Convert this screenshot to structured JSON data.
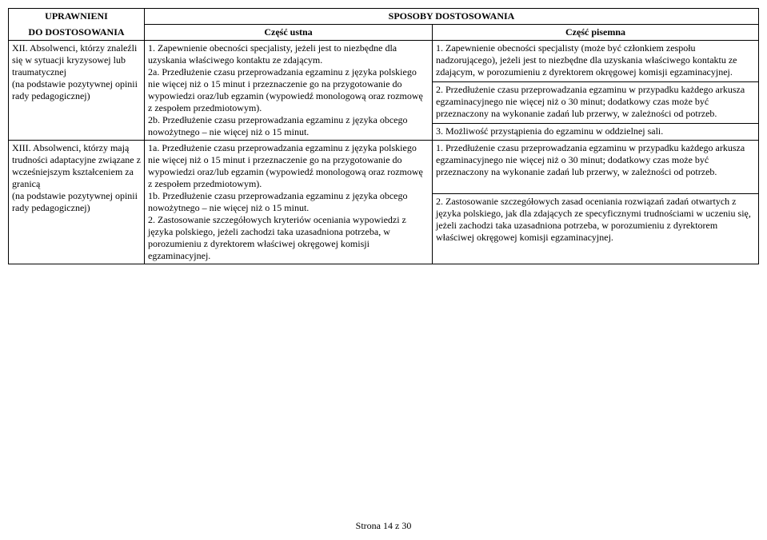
{
  "header": {
    "leftTop": "UPRAWNIENI",
    "leftBottom": "DO DOSTOSOWANIA",
    "mainTop": "SPOSOBY DOSTOSOWANIA",
    "midSub": "Część ustna",
    "rightSub": "Część pisemna"
  },
  "rowA": {
    "left": "XII. Absolwenci, którzy znaleźli się w sytuacji kryzysowej lub traumatycznej\n(na podstawie pozytywnej opinii rady pedagogicznej)",
    "mid": "1. Zapewnienie obecności specjalisty, jeżeli jest to niezbędne dla uzyskania właściwego kontaktu ze zdającym.\n2a. Przedłużenie czasu przeprowadzania egzaminu z języka polskiego nie więcej niż o 15 minut i przeznaczenie go na przygotowanie do wypowiedzi oraz/lub egzamin (wypowiedź monologową oraz rozmowę z zespołem przedmiotowym).\n2b. Przedłużenie czasu przeprowadzania egzaminu z języka obcego nowożytnego – nie więcej niż o 15 minut.",
    "right1": "1. Zapewnienie obecności specjalisty (może być członkiem zespołu nadzorującego), jeżeli jest to niezbędne dla uzyskania właściwego kontaktu ze zdającym, w porozumieniu z dyrektorem okręgowej komisji egzaminacyjnej.",
    "right2": "2. Przedłużenie czasu przeprowadzania egzaminu w przypadku każdego arkusza egzaminacyjnego nie więcej niż o 30 minut; dodatkowy czas może być przeznaczony na wykonanie zadań lub przerwy, w zależności od potrzeb.",
    "right3": "3. Możliwość przystąpienia do egzaminu w oddzielnej sali."
  },
  "rowB": {
    "left": "XIII. Absolwenci, którzy mają trudności adaptacyjne związane z wcześniejszym kształceniem za granicą\n(na podstawie pozytywnej opinii rady pedagogicznej)",
    "mid": "1a. Przedłużenie czasu przeprowadzania egzaminu z języka polskiego nie więcej niż o 15 minut i przeznaczenie go na przygotowanie do wypowiedzi oraz/lub egzamin (wypowiedź monologową oraz rozmowę z zespołem przedmiotowym).\n1b. Przedłużenie czasu przeprowadzania egzaminu z języka obcego nowożytnego – nie więcej niż o 15 minut.\n2. Zastosowanie szczegółowych kryteriów oceniania wypowiedzi z języka polskiego, jeżeli zachodzi taka uzasadniona potrzeba, w porozumieniu z dyrektorem właściwej okręgowej komisji egzaminacyjnej.",
    "right1": "1. Przedłużenie czasu przeprowadzania egzaminu w przypadku każdego arkusza egzaminacyjnego nie więcej niż o 30 minut; dodatkowy czas może być przeznaczony na wykonanie zadań lub przerwy, w zależności od potrzeb.",
    "right2": "2. Zastosowanie szczegółowych zasad oceniania rozwiązań zadań otwartych z języka polskiego, jak dla zdających ze specyficznymi trudnościami w uczeniu się, jeżeli zachodzi taka uzasadniona potrzeba, w porozumieniu z dyrektorem właściwej okręgowej komisji egzaminacyjnej."
  },
  "footer": "Strona 14 z 30"
}
